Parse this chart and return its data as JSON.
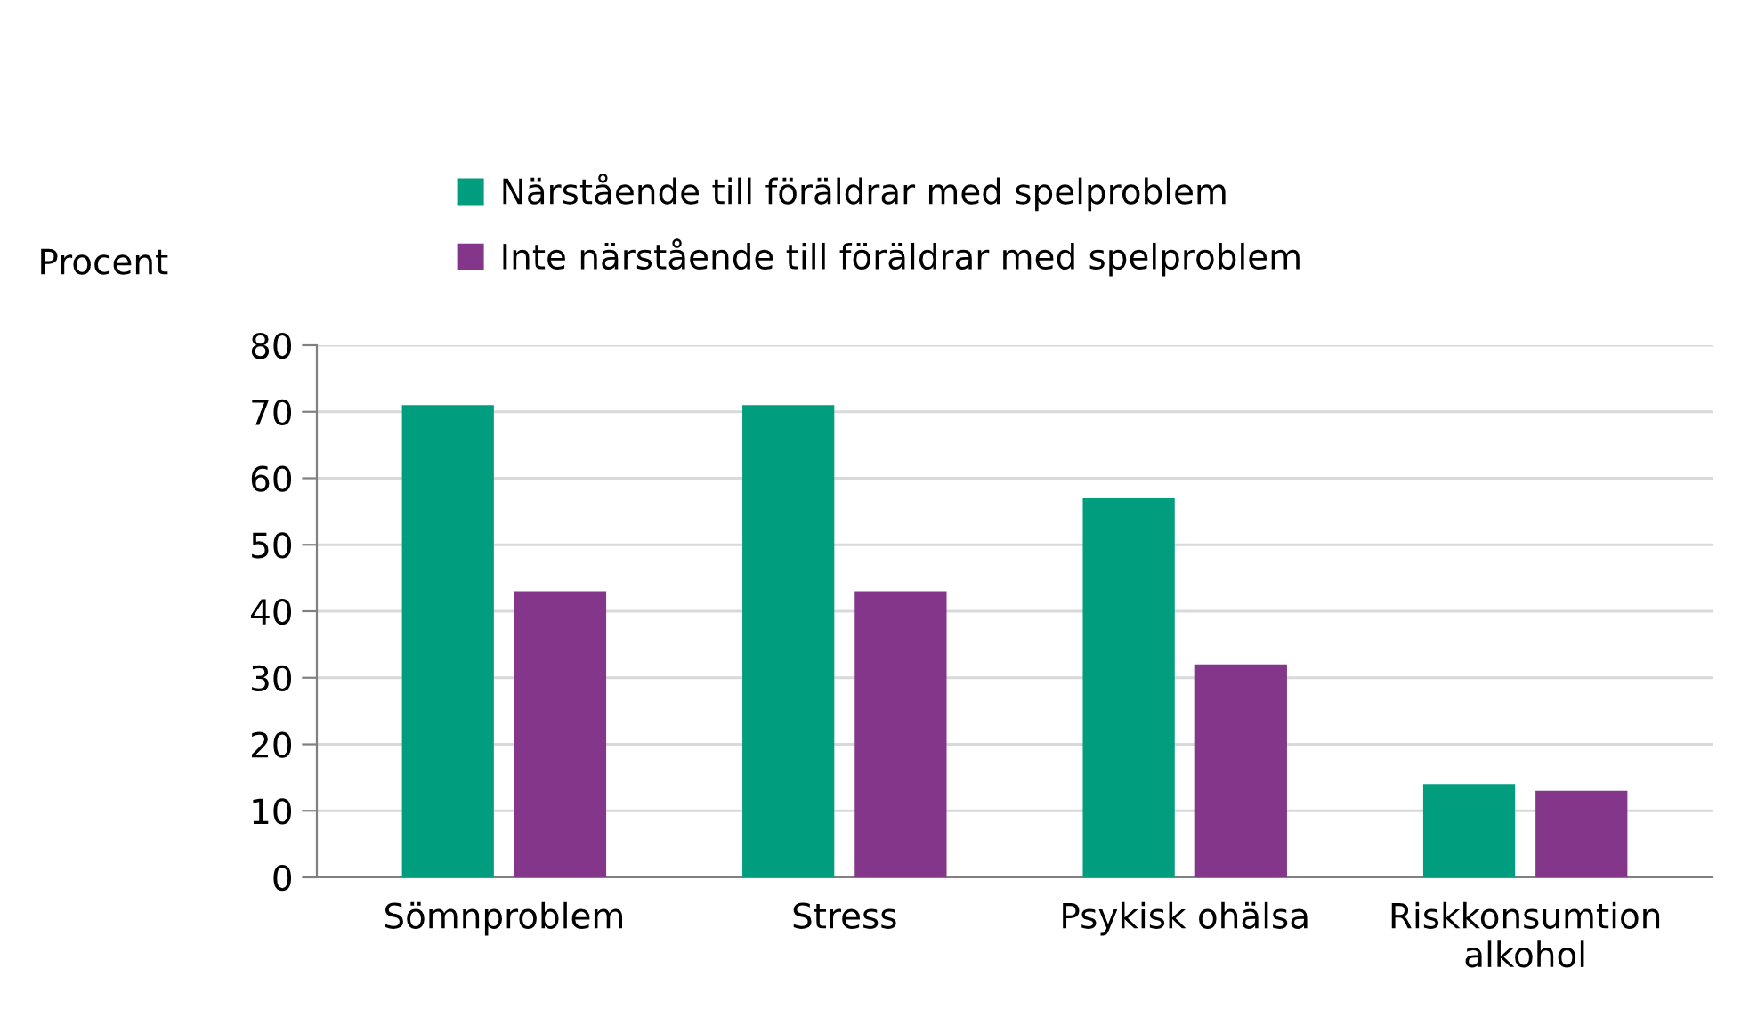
{
  "chart_data": {
    "type": "bar",
    "ylabel": "Procent",
    "categories": [
      "Sömnproblem",
      "Stress",
      "Psykisk ohälsa",
      "Riskkonsumtion\nalkohol"
    ],
    "series": [
      {
        "name": "Närstående till föräldrar med spelproblem",
        "color": "#009e7e",
        "values": [
          71,
          71,
          57,
          14
        ]
      },
      {
        "name": "Inte närstående till föräldrar med spelproblem",
        "color": "#84368a",
        "values": [
          43,
          43,
          32,
          13
        ]
      }
    ],
    "ylim": [
      0,
      80
    ],
    "yticks": [
      0,
      10,
      20,
      30,
      40,
      50,
      60,
      70,
      80
    ],
    "grid": "y",
    "legend": "top"
  }
}
